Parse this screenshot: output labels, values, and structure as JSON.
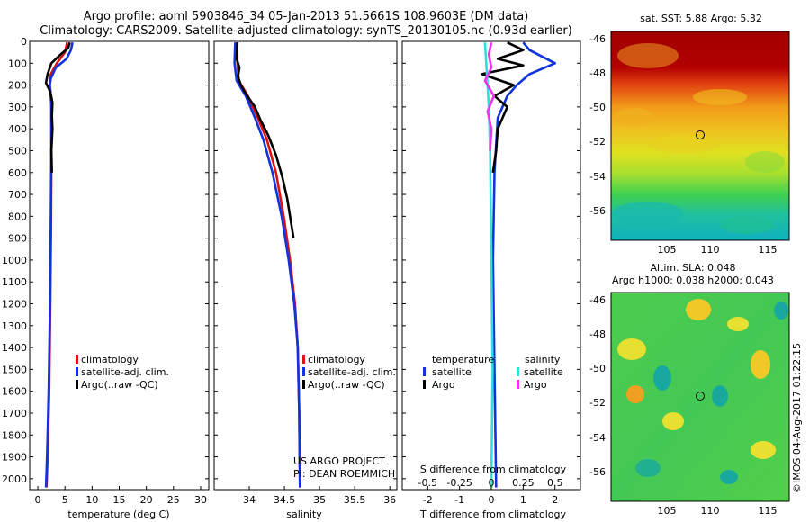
{
  "header": {
    "line1": "Argo profile: aoml 5903846_34 05-Jan-2013 51.5661S 108.9603E (DM data)",
    "line2": "Climatology: CARS2009. Satellite-adjusted climatology: synTS_20130105.nc (0.93d earlier)"
  },
  "colors": {
    "climatology": "#dd1111",
    "satellite": "#1133dd",
    "argo": "#000000",
    "sal_satellite": "#33dddd",
    "sal_argo": "#ee33ee"
  },
  "chart_data": [
    {
      "type": "line",
      "id": "temperature",
      "xlabel": "temperature (deg C)",
      "xlim": [
        -1.5,
        31.5
      ],
      "xticks": [
        0,
        5,
        10,
        15,
        20,
        25,
        30
      ],
      "ylim": [
        0,
        2050
      ],
      "yticks": [
        0,
        100,
        200,
        300,
        400,
        500,
        600,
        700,
        800,
        900,
        1000,
        1100,
        1200,
        1300,
        1400,
        1500,
        1600,
        1700,
        1800,
        1900,
        2000
      ],
      "legend": [
        "climatology",
        "satellite-adj. clim.",
        "Argo(..raw -QC)"
      ],
      "series": [
        {
          "name": "climatology",
          "color": "#dd1111",
          "points": [
            [
              5.4,
              5
            ],
            [
              5.0,
              50
            ],
            [
              3.5,
              100
            ],
            [
              2.4,
              150
            ],
            [
              2.2,
              200
            ],
            [
              2.4,
              250
            ],
            [
              2.5,
              300
            ],
            [
              2.5,
              500
            ],
            [
              2.45,
              800
            ],
            [
              2.3,
              1200
            ],
            [
              2.1,
              1600
            ],
            [
              1.8,
              1900
            ],
            [
              1.6,
              2040
            ]
          ]
        },
        {
          "name": "satellite-adj. clim.",
          "color": "#1133dd",
          "points": [
            [
              6.4,
              5
            ],
            [
              6.1,
              40
            ],
            [
              5.3,
              80
            ],
            [
              3.3,
              120
            ],
            [
              2.4,
              170
            ],
            [
              2.2,
              200
            ],
            [
              2.4,
              250
            ],
            [
              2.5,
              300
            ],
            [
              2.5,
              500
            ],
            [
              2.4,
              800
            ],
            [
              2.25,
              1200
            ],
            [
              2.0,
              1600
            ],
            [
              1.7,
              1900
            ],
            [
              1.5,
              2040
            ]
          ]
        },
        {
          "name": "Argo(..raw -QC)",
          "color": "#000000",
          "points": [
            [
              5.9,
              5
            ],
            [
              5.6,
              30
            ],
            [
              4.2,
              60
            ],
            [
              2.5,
              100
            ],
            [
              1.8,
              150
            ],
            [
              1.5,
              190
            ],
            [
              2.3,
              230
            ],
            [
              2.7,
              280
            ],
            [
              2.6,
              340
            ],
            [
              2.7,
              400
            ],
            [
              2.5,
              500
            ],
            [
              2.6,
              600
            ]
          ]
        }
      ]
    },
    {
      "type": "line",
      "id": "salinity",
      "xlabel": "salinity",
      "xlim": [
        33.5,
        36.1
      ],
      "xticks": [
        34,
        34.5,
        35,
        35.5,
        36
      ],
      "ylim": [
        0,
        2050
      ],
      "legend": [
        "climatology",
        "satellite-adj. clim.",
        "Argo(..raw -QC)"
      ],
      "annotation": [
        "US ARGO PROJECT",
        "PI: DEAN ROEMMICH"
      ],
      "series": [
        {
          "name": "climatology",
          "color": "#dd1111",
          "points": [
            [
              33.82,
              5
            ],
            [
              33.83,
              100
            ],
            [
              33.85,
              180
            ],
            [
              33.98,
              250
            ],
            [
              34.12,
              350
            ],
            [
              34.25,
              450
            ],
            [
              34.38,
              600
            ],
            [
              34.49,
              800
            ],
            [
              34.58,
              1000
            ],
            [
              34.65,
              1200
            ],
            [
              34.69,
              1400
            ],
            [
              34.71,
              1700
            ],
            [
              34.72,
              2040
            ]
          ]
        },
        {
          "name": "satellite-adj. clim.",
          "color": "#1133dd",
          "points": [
            [
              33.8,
              5
            ],
            [
              33.79,
              100
            ],
            [
              33.82,
              180
            ],
            [
              33.95,
              250
            ],
            [
              34.08,
              350
            ],
            [
              34.2,
              450
            ],
            [
              34.33,
              600
            ],
            [
              34.46,
              800
            ],
            [
              34.56,
              1000
            ],
            [
              34.64,
              1200
            ],
            [
              34.69,
              1400
            ],
            [
              34.71,
              1700
            ],
            [
              34.72,
              2040
            ]
          ]
        },
        {
          "name": "Argo(..raw -QC)",
          "color": "#000000",
          "points": [
            [
              33.83,
              5
            ],
            [
              33.82,
              80
            ],
            [
              33.86,
              120
            ],
            [
              33.84,
              160
            ],
            [
              33.88,
              200
            ],
            [
              33.95,
              240
            ],
            [
              34.08,
              300
            ],
            [
              34.16,
              360
            ],
            [
              34.27,
              430
            ],
            [
              34.38,
              520
            ],
            [
              34.47,
              620
            ],
            [
              34.54,
              720
            ],
            [
              34.59,
              820
            ],
            [
              34.63,
              900
            ]
          ]
        }
      ]
    },
    {
      "type": "line",
      "id": "difference",
      "xlabel": "T difference from climatology",
      "xlabel_top": "S difference from climatology",
      "xlim": [
        -2.8,
        2.8
      ],
      "xticks": [
        -2,
        -1,
        0,
        1,
        2
      ],
      "xticks_top": [
        -0.5,
        -0.25,
        0,
        0.25,
        0.5
      ],
      "ylim": [
        0,
        2050
      ],
      "legend_headers": [
        "temperature",
        "salinity"
      ],
      "legend": [
        "satellite",
        "Argo",
        "satellite",
        "Argo"
      ],
      "series": [
        {
          "name": "temperature satellite",
          "color": "#1133dd",
          "points": [
            [
              1.0,
              5
            ],
            [
              1.2,
              40
            ],
            [
              2.0,
              100
            ],
            [
              1.2,
              150
            ],
            [
              0.8,
              200
            ],
            [
              0.5,
              250
            ],
            [
              0.2,
              350
            ],
            [
              0.1,
              600
            ],
            [
              0.05,
              1000
            ],
            [
              0.1,
              1500
            ],
            [
              0.15,
              2040
            ]
          ]
        },
        {
          "name": "temperature Argo",
          "color": "#000000",
          "points": [
            [
              0.5,
              5
            ],
            [
              1.0,
              40
            ],
            [
              0.2,
              80
            ],
            [
              1.0,
              110
            ],
            [
              -0.3,
              150
            ],
            [
              0.7,
              200
            ],
            [
              0.1,
              250
            ],
            [
              0.5,
              300
            ],
            [
              0.2,
              400
            ],
            [
              0.15,
              500
            ],
            [
              0.05,
              600
            ]
          ]
        },
        {
          "name": "salinity satellite",
          "color": "#33dddd",
          "points": [
            [
              -0.05,
              5
            ],
            [
              -0.04,
              100
            ],
            [
              -0.03,
              200
            ],
            [
              -0.02,
              300
            ],
            [
              -0.01,
              500
            ],
            [
              0.0,
              1000
            ],
            [
              0.01,
              1500
            ],
            [
              0.0,
              2040
            ]
          ]
        },
        {
          "name": "salinity Argo",
          "color": "#ee33ee",
          "points": [
            [
              0.0,
              5
            ],
            [
              -0.02,
              60
            ],
            [
              0.0,
              120
            ],
            [
              -0.05,
              180
            ],
            [
              0.02,
              250
            ],
            [
              -0.03,
              320
            ],
            [
              0.0,
              400
            ],
            [
              -0.01,
              500
            ]
          ]
        }
      ]
    }
  ],
  "maps": {
    "sst": {
      "title": "sat. SST: 5.88 Argo: 5.32",
      "yticks": [
        "-46",
        "-48",
        "-50",
        "-52",
        "-54",
        "-56"
      ],
      "xticks": [
        "105",
        "110",
        "115"
      ]
    },
    "sla": {
      "title1": "Altim. SLA: 0.048",
      "title2": "Argo h1000: 0.038 h2000: 0.043",
      "yticks": [
        "-46",
        "-48",
        "-50",
        "-52",
        "-54",
        "-56"
      ],
      "xticks": [
        "105",
        "110",
        "115"
      ]
    }
  },
  "footer": {
    "credit": "©IMOS 04-Aug-2017 01:22:15"
  }
}
